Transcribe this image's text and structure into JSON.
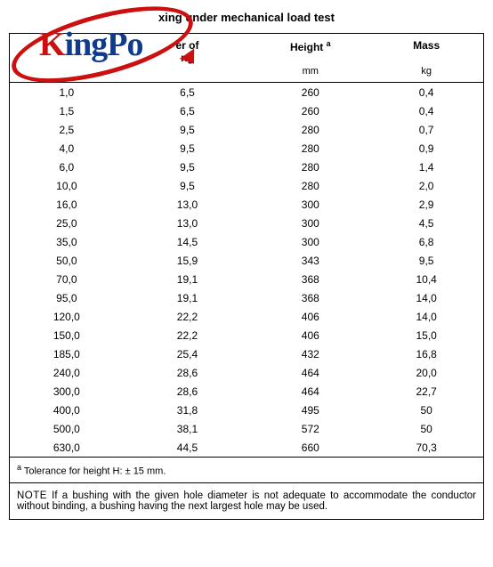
{
  "logo": {
    "text_k": "K",
    "text_rest": "ingPo",
    "red": "#cc1010",
    "blue": "#103a8c"
  },
  "title": "xing under mechanical load test",
  "columns": {
    "col1": "",
    "col2": "er of\nng",
    "col3_html": "Height <sup class='a'>a</sup>",
    "col3_plain": "Height",
    "col3_sup": "a",
    "col4": "Mass"
  },
  "units": {
    "u1": "",
    "u2": "",
    "u3": "mm",
    "u4": "kg"
  },
  "rows": [
    [
      "1,0",
      "6,5",
      "260",
      "0,4"
    ],
    [
      "1,5",
      "6,5",
      "260",
      "0,4"
    ],
    [
      "2,5",
      "9,5",
      "280",
      "0,7"
    ],
    [
      "4,0",
      "9,5",
      "280",
      "0,9"
    ],
    [
      "6,0",
      "9,5",
      "280",
      "1,4"
    ],
    [
      "10,0",
      "9,5",
      "280",
      "2,0"
    ],
    [
      "16,0",
      "13,0",
      "300",
      "2,9"
    ],
    [
      "25,0",
      "13,0",
      "300",
      "4,5"
    ],
    [
      "35,0",
      "14,5",
      "300",
      "6,8"
    ],
    [
      "50,0",
      "15,9",
      "343",
      "9,5"
    ],
    [
      "70,0",
      "19,1",
      "368",
      "10,4"
    ],
    [
      "95,0",
      "19,1",
      "368",
      "14,0"
    ],
    [
      "120,0",
      "22,2",
      "406",
      "14,0"
    ],
    [
      "150,0",
      "22,2",
      "406",
      "15,0"
    ],
    [
      "185,0",
      "25,4",
      "432",
      "16,8"
    ],
    [
      "240,0",
      "28,6",
      "464",
      "20,0"
    ],
    [
      "300,0",
      "28,6",
      "464",
      "22,7"
    ],
    [
      "400,0",
      "31,8",
      "495",
      "50"
    ],
    [
      "500,0",
      "38,1",
      "572",
      "50"
    ],
    [
      "630,0",
      "44,5",
      "660",
      "70,3"
    ]
  ],
  "footnote_sup": "a",
  "footnote_text": "  Tolerance for height H: ± 15 mm.",
  "note_label": "NOTE",
  "note_text": "  If a bushing with the given hole diameter is not adequate to accommodate the conductor without binding, a bushing having the next largest hole may be used."
}
